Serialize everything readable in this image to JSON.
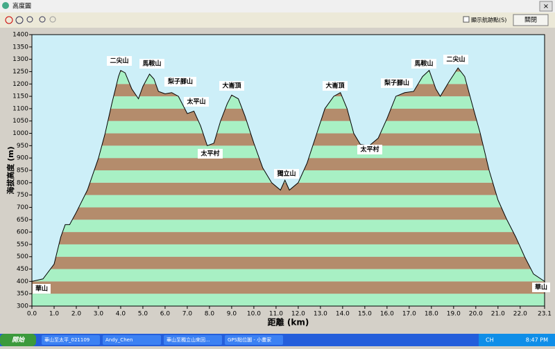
{
  "window": {
    "title": "高度圖",
    "checkbox": "顯示航跡點(S)",
    "close_button": "關閉"
  },
  "taskbar": {
    "start": "開始",
    "tasks": [
      "華山至太平_021109",
      "Andy_Chen",
      "華山至獨立山來回...",
      "GPS點位圖 - 小畫家"
    ],
    "lang": "CH",
    "clock": "8:47 PM"
  },
  "chart_data": {
    "type": "area",
    "xlabel": "距離 (km)",
    "ylabel": "海拔高度 (m)",
    "x": [
      0,
      0.5,
      1.0,
      1.3,
      1.5,
      1.7,
      2.0,
      2.5,
      3.0,
      3.3,
      3.6,
      3.9,
      4.0,
      4.2,
      4.5,
      4.8,
      5.0,
      5.3,
      5.5,
      5.7,
      6.0,
      6.3,
      6.6,
      7.0,
      7.3,
      7.6,
      7.9,
      8.2,
      8.5,
      8.8,
      9.0,
      9.3,
      9.6,
      10.0,
      10.4,
      10.8,
      11.2,
      11.4,
      11.6,
      12.0,
      12.4,
      12.8,
      13.2,
      13.6,
      13.9,
      14.2,
      14.5,
      14.8,
      15.2,
      15.6,
      16.0,
      16.4,
      16.8,
      17.2,
      17.6,
      17.9,
      18.2,
      18.4,
      18.8,
      19.2,
      19.5,
      19.8,
      20.2,
      20.6,
      21.0,
      21.4,
      21.8,
      22.2,
      22.6,
      23.1
    ],
    "values": [
      400,
      410,
      470,
      580,
      630,
      630,
      680,
      770,
      900,
      1000,
      1120,
      1230,
      1255,
      1245,
      1180,
      1140,
      1190,
      1240,
      1220,
      1170,
      1160,
      1165,
      1150,
      1080,
      1090,
      1030,
      950,
      960,
      1050,
      1120,
      1155,
      1140,
      1070,
      960,
      860,
      800,
      770,
      810,
      770,
      800,
      880,
      990,
      1100,
      1150,
      1165,
      1100,
      1000,
      955,
      950,
      980,
      1060,
      1150,
      1165,
      1170,
      1230,
      1255,
      1180,
      1150,
      1210,
      1265,
      1230,
      1130,
      1000,
      850,
      730,
      650,
      580,
      500,
      430,
      400
    ],
    "line_color": "#000000",
    "stripe_colors": [
      "#a8f0c4",
      "#b48c6c"
    ],
    "plot_background": "#cdeff8",
    "xlim": [
      0,
      23.1
    ],
    "ylim": [
      300,
      1400
    ],
    "xticks": [
      {
        "value": 0,
        "label": "0.0"
      },
      {
        "value": 1,
        "label": "1.0"
      },
      {
        "value": 2,
        "label": "2.0"
      },
      {
        "value": 3,
        "label": "3.0"
      },
      {
        "value": 4,
        "label": "4.0"
      },
      {
        "value": 5,
        "label": "5.0"
      },
      {
        "value": 6,
        "label": "6.0"
      },
      {
        "value": 7,
        "label": "7.0"
      },
      {
        "value": 8,
        "label": "8.0"
      },
      {
        "value": 9,
        "label": "9.0"
      },
      {
        "value": 10,
        "label": "10.0"
      },
      {
        "value": 11,
        "label": "11.0"
      },
      {
        "value": 12,
        "label": "12.0"
      },
      {
        "value": 13,
        "label": "13.0"
      },
      {
        "value": 14,
        "label": "14.0"
      },
      {
        "value": 15,
        "label": "15.0"
      },
      {
        "value": 16,
        "label": "16.0"
      },
      {
        "value": 17,
        "label": "17.0"
      },
      {
        "value": 18,
        "label": "18.0"
      },
      {
        "value": 19,
        "label": "19.0"
      },
      {
        "value": 20,
        "label": "20.0"
      },
      {
        "value": 21,
        "label": "21.0"
      },
      {
        "value": 22,
        "label": "22.0"
      },
      23.1
    ],
    "yticks": [
      300,
      350,
      400,
      450,
      500,
      550,
      600,
      650,
      700,
      750,
      800,
      850,
      900,
      950,
      1000,
      1050,
      1100,
      1150,
      1200,
      1250,
      1300,
      1350,
      1400
    ],
    "annotations": [
      {
        "text": "二尖山"
      },
      {
        "text": "馬鞍山"
      },
      {
        "text": "梨子腳山"
      },
      {
        "text": "太平山"
      },
      {
        "text": "大崙頂"
      },
      {
        "text": "太平村"
      },
      {
        "text": "獨立山"
      },
      {
        "text": "大崙頂"
      },
      {
        "text": "太平村"
      },
      {
        "text": "梨子腳山"
      },
      {
        "text": "馬鞍山"
      },
      {
        "text": "二尖山"
      },
      {
        "text": "華山"
      },
      {
        "text": "華山"
      }
    ]
  }
}
